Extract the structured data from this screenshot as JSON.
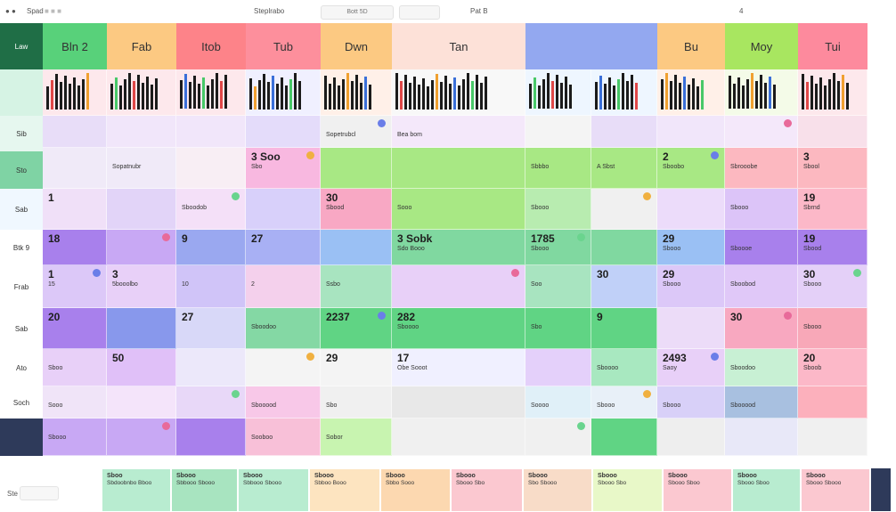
{
  "topbar": {
    "left_label": "Spad",
    "center_label": "Steplrabo",
    "sub_label": "Bott 5D",
    "nav_label": "Pat B",
    "page_label": "4"
  },
  "sidebar": {
    "items": [
      "Law",
      "",
      "Sib",
      "Sto",
      "Sab",
      "Btk 9",
      "Frab",
      "Sab",
      "Ato",
      "Soch",
      ""
    ]
  },
  "headers": [
    "Bln 2",
    "Fab",
    "Itob",
    "Tub",
    "Dwn",
    "Tan",
    "",
    "",
    "Bu",
    "Moy",
    "Tui"
  ],
  "grid": {
    "rows": [
      [
        "",
        "",
        "",
        "",
        "",
        "",
        "",
        "",
        "",
        "",
        ""
      ],
      [
        "",
        "",
        "",
        "",
        "Sopetrubcl",
        "Bea bom",
        "",
        "",
        "",
        "",
        ""
      ],
      [
        "",
        "Sopatnubr",
        "",
        "Sbo",
        "",
        "",
        "Sbbbo",
        "A Sbst",
        "Sboobo",
        "Sbrooobe",
        "Sbool"
      ],
      [
        "",
        "",
        "Sboodob",
        "",
        "Sbood",
        "Sooo",
        "Sbooo",
        "",
        "",
        "Sbooo",
        "Sbrnd"
      ],
      [
        "",
        "",
        "",
        "",
        "",
        "Sdo Booo",
        "Sbooo",
        "",
        "Sbooo",
        "Sboooe",
        "Sbood"
      ],
      [
        "15",
        "5booolbo",
        "10",
        "2",
        "Ssbo",
        "",
        "Soo",
        "",
        "Sbooo",
        "Sboobod",
        "Sbooo"
      ],
      [
        "",
        "",
        "",
        "Sboodoo",
        "",
        "Sboooo",
        "Sbo",
        "",
        "",
        "",
        "Sbooo"
      ],
      [
        "Sboo",
        "",
        "",
        "",
        "",
        "Obe Sooot",
        "",
        "Sboooo",
        "Saoy",
        "Sboodoo",
        "Sboob"
      ],
      [
        "Sooo",
        "",
        "",
        "Sbooood",
        "Sbo",
        "",
        "Soooo",
        "Sbooo",
        "Sbooo",
        "Sbooood",
        ""
      ],
      [
        "Sbooo",
        "",
        "",
        "Sooboo",
        "Sobor",
        "",
        "",
        "",
        "",
        "",
        ""
      ]
    ],
    "nums": [
      [
        "",
        "",
        "",
        "",
        "",
        "",
        "",
        "",
        "",
        "",
        ""
      ],
      [
        "",
        "",
        "",
        "",
        "",
        "",
        "",
        "",
        "",
        "",
        ""
      ],
      [
        "",
        "",
        "",
        "3 Soo",
        "",
        "",
        "",
        "",
        "2",
        "",
        "3"
      ],
      [
        "1",
        "",
        "",
        "",
        "30",
        "",
        "",
        "",
        "",
        "",
        "19"
      ],
      [
        "18",
        "",
        "9",
        "27",
        "",
        "3 Sobk",
        "1785",
        "",
        "29",
        "",
        "19"
      ],
      [
        "1",
        "3",
        "",
        "",
        "",
        "",
        "",
        "30",
        "29",
        "",
        "30"
      ],
      [
        "20",
        "",
        "27",
        "",
        "2237",
        "282",
        "",
        "9",
        "",
        "30",
        ""
      ],
      [
        "",
        "50",
        "",
        "",
        "29",
        "17",
        "",
        "",
        "2493",
        "",
        "20"
      ],
      [
        "",
        "",
        "",
        "",
        "",
        "",
        "",
        "",
        "",
        "",
        ""
      ],
      [
        "",
        "",
        "",
        "",
        "",
        "",
        "",
        "",
        "",
        "",
        ""
      ]
    ]
  },
  "bottom": {
    "left_label": "Ste",
    "cards": [
      {
        "t": "Sboo",
        "s": "Sbdoobnbo Bboo"
      },
      {
        "t": "Sbooo",
        "s": "Sbbooo Sbooo"
      },
      {
        "t": "Sbooo",
        "s": "Sbbooo Sbooo"
      },
      {
        "t": "Sbooo",
        "s": "Sbboo Booo"
      },
      {
        "t": "Sbooo",
        "s": "Sbbo Sooo"
      },
      {
        "t": "Sbooo",
        "s": "Sbooo Sbo"
      },
      {
        "t": "Sbooo",
        "s": "Sbo Sbooo"
      },
      {
        "t": "Sbooo",
        "s": "Sbooo Sbo"
      },
      {
        "t": "Sbooo",
        "s": "Sbooo Sboo"
      },
      {
        "t": "Sbooo",
        "s": "Sbooo Sboo"
      },
      {
        "t": "Sbooo",
        "s": "Sbooo Sbooo"
      }
    ]
  },
  "colors": {
    "header": [
      "#58d17a",
      "#fcc982",
      "#fd8389",
      "#fd8f9c",
      "#fcc982",
      "#fde1d8",
      "#93a8f0",
      "#93a8f0",
      "#fcc982",
      "#a8e660",
      "#fd8a9d"
    ],
    "sidebar_active": "#1f6e46",
    "sidebar_dark": "#2e3a5a"
  }
}
